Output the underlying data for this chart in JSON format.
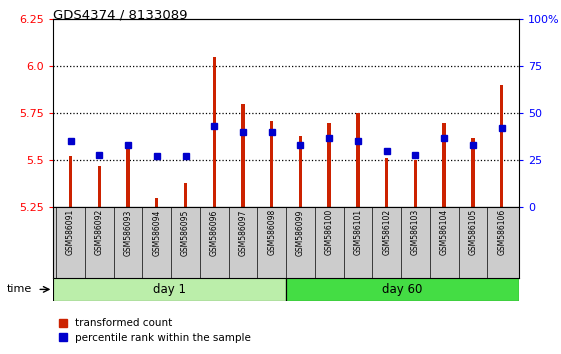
{
  "title": "GDS4374 / 8133089",
  "samples": [
    "GSM586091",
    "GSM586092",
    "GSM586093",
    "GSM586094",
    "GSM586095",
    "GSM586096",
    "GSM586097",
    "GSM586098",
    "GSM586099",
    "GSM586100",
    "GSM586101",
    "GSM586102",
    "GSM586103",
    "GSM586104",
    "GSM586105",
    "GSM586106"
  ],
  "red_values": [
    5.52,
    5.47,
    5.56,
    5.3,
    5.38,
    6.05,
    5.8,
    5.71,
    5.63,
    5.7,
    5.75,
    5.51,
    5.5,
    5.7,
    5.62,
    5.9
  ],
  "blue_values": [
    35,
    28,
    33,
    27,
    27,
    43,
    40,
    40,
    33,
    37,
    35,
    30,
    28,
    37,
    33,
    42
  ],
  "ylim_left": [
    5.25,
    6.25
  ],
  "ylim_right": [
    0,
    100
  ],
  "yticks_left": [
    5.25,
    5.5,
    5.75,
    6.0,
    6.25
  ],
  "yticks_right": [
    0,
    25,
    50,
    75,
    100
  ],
  "day1_samples": 8,
  "day60_samples": 8,
  "day1_label": "day 1",
  "day60_label": "day 60",
  "time_label": "time",
  "legend_red": "transformed count",
  "legend_blue": "percentile rank within the sample",
  "bar_color": "#cc2200",
  "blue_color": "#0000cc",
  "day1_bg": "#bbeeaa",
  "day60_bg": "#44dd44",
  "label_bg": "#cccccc",
  "bar_width": 0.12,
  "grid_color": "#000000",
  "base_value": 5.25
}
